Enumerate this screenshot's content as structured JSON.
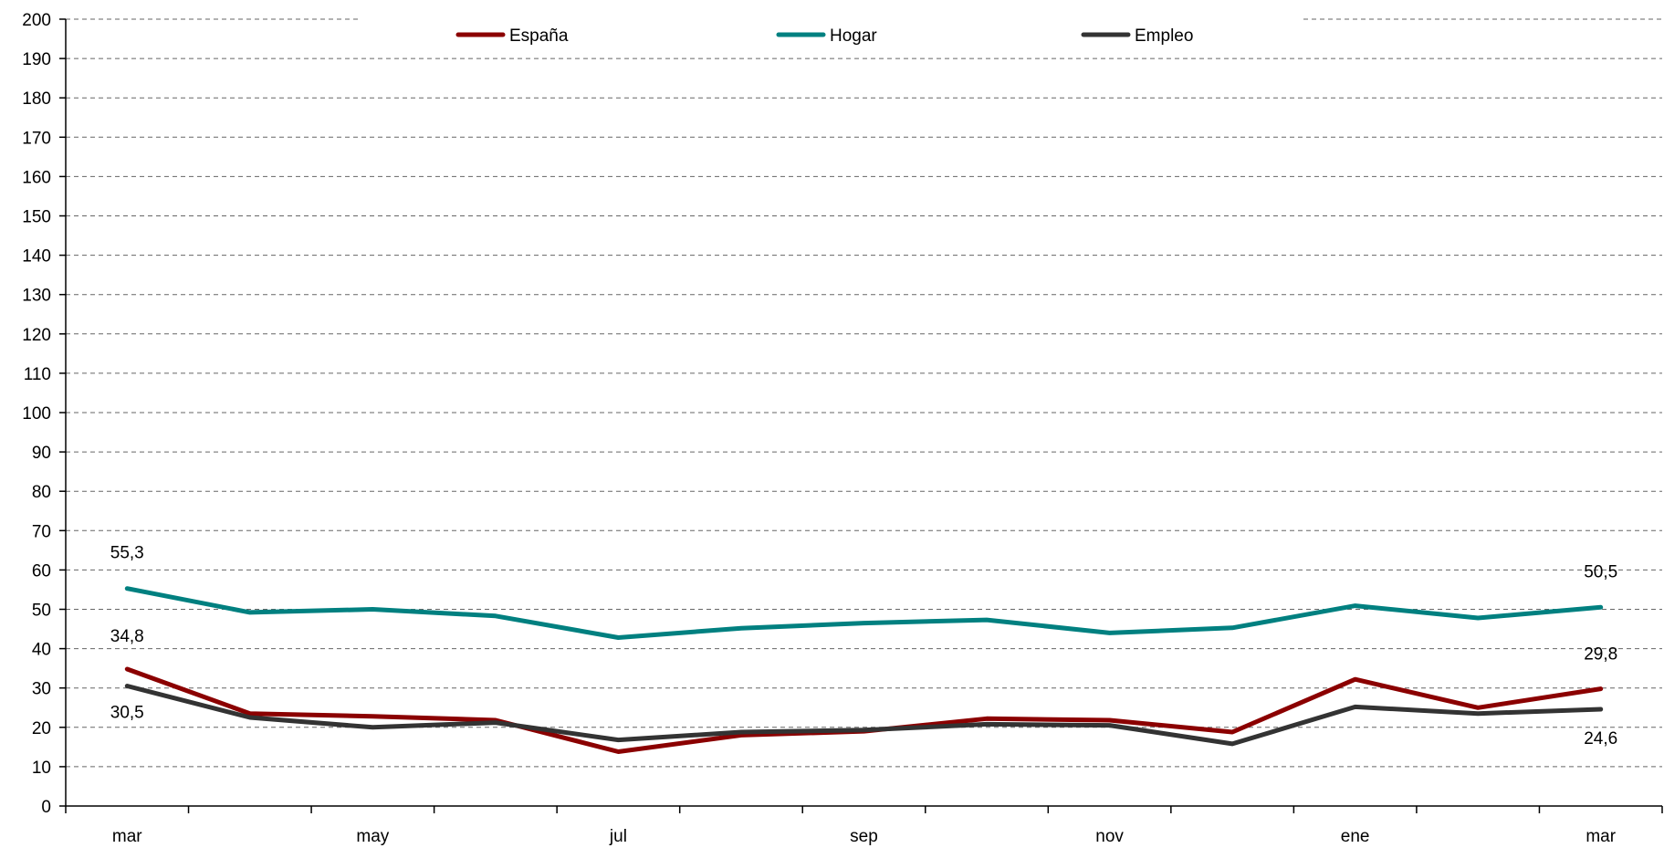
{
  "chart_data": {
    "type": "line",
    "title": "",
    "xlabel": "",
    "ylabel": "",
    "ylim": [
      0,
      200
    ],
    "yticks": [
      0,
      10,
      20,
      30,
      40,
      50,
      60,
      70,
      80,
      90,
      100,
      110,
      120,
      130,
      140,
      150,
      160,
      170,
      180,
      190,
      200
    ],
    "grid": true,
    "legend_position": "top",
    "categories": [
      "mar",
      "",
      "may",
      "",
      "jul",
      "",
      "sep",
      "",
      "nov",
      "",
      "ene",
      "",
      "mar"
    ],
    "series": [
      {
        "name": "España",
        "color": "#8b0000",
        "values": [
          34.8,
          23.5,
          22.8,
          21.8,
          13.8,
          18.0,
          19.0,
          22.2,
          21.8,
          18.8,
          32.2,
          25.0,
          29.8
        ]
      },
      {
        "name": "Hogar",
        "color": "#008080",
        "values": [
          55.3,
          49.2,
          50.0,
          48.3,
          42.8,
          45.2,
          46.5,
          47.3,
          44.0,
          45.3,
          50.9,
          47.8,
          50.5
        ]
      },
      {
        "name": "Empleo",
        "color": "#333333",
        "values": [
          30.5,
          22.5,
          20.0,
          21.2,
          16.8,
          18.8,
          19.3,
          20.8,
          20.5,
          15.8,
          25.2,
          23.5,
          24.6
        ]
      }
    ],
    "annotations": [
      {
        "text": "55,3",
        "series": 1,
        "index": 0
      },
      {
        "text": "34,8",
        "series": 0,
        "index": 0
      },
      {
        "text": "30,5",
        "series": 2,
        "index": 0
      },
      {
        "text": "50,5",
        "series": 1,
        "index": 12
      },
      {
        "text": "29,8",
        "series": 0,
        "index": 12
      },
      {
        "text": "24,6",
        "series": 2,
        "index": 12
      }
    ]
  }
}
